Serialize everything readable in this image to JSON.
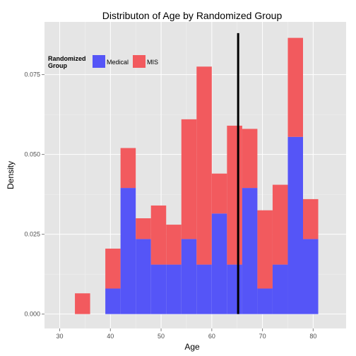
{
  "chart_data": {
    "type": "bar",
    "subtype": "stacked-histogram",
    "title": "Distributon of Age by Randomized Group",
    "xlabel": "Age",
    "ylabel": "Density",
    "xlim": [
      27,
      86.5
    ],
    "ylim": [
      -0.0045,
      0.0915
    ],
    "x_ticks": [
      30,
      40,
      50,
      60,
      70,
      80
    ],
    "y_ticks": [
      0.0,
      0.025,
      0.05,
      0.075
    ],
    "y_tick_labels": [
      "0.000",
      "0.025",
      "0.050",
      "0.075"
    ],
    "grid": true,
    "legend": {
      "title": "Randomized Group",
      "title_lines": [
        "Randomized",
        "Group"
      ],
      "position": "top-left"
    },
    "bin_width": 3,
    "bin_starts": [
      30,
      33,
      36,
      39,
      42,
      45,
      48,
      51,
      54,
      57,
      60,
      63,
      66,
      69,
      72,
      75,
      78
    ],
    "series": [
      {
        "name": "Medical",
        "color": "#5555f7",
        "values": [
          0,
          0,
          0,
          0.008,
          0.0395,
          0.0235,
          0.0155,
          0.0155,
          0.0235,
          0.0155,
          0.0315,
          0.0155,
          0.0395,
          0.008,
          0.0155,
          0.0555,
          0.0235
        ]
      },
      {
        "name": "MIS",
        "color": "#f25a5e",
        "values": [
          0,
          0.0065,
          0,
          0.0125,
          0.0125,
          0.0065,
          0.0185,
          0.0125,
          0.0375,
          0.062,
          0.0125,
          0.0435,
          0.0185,
          0.0245,
          0.025,
          0.031,
          0.0125
        ]
      }
    ],
    "reference_line": {
      "x": 65.2,
      "color": "#000000"
    }
  }
}
